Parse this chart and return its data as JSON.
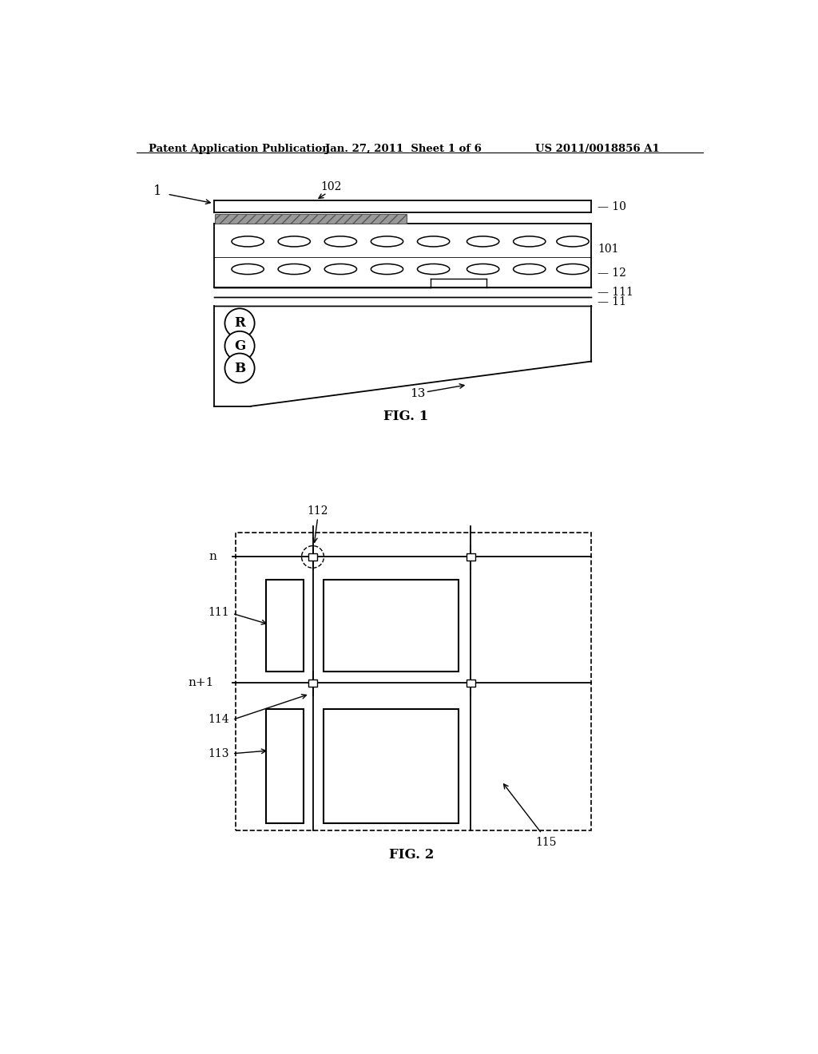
{
  "bg_color": "#ffffff",
  "header_left": "Patent Application Publication",
  "header_mid": "Jan. 27, 2011  Sheet 1 of 6",
  "header_right": "US 2011/0018856 A1",
  "fig1_label": "FIG. 1",
  "fig2_label": "FIG. 2",
  "line_color": "#000000"
}
